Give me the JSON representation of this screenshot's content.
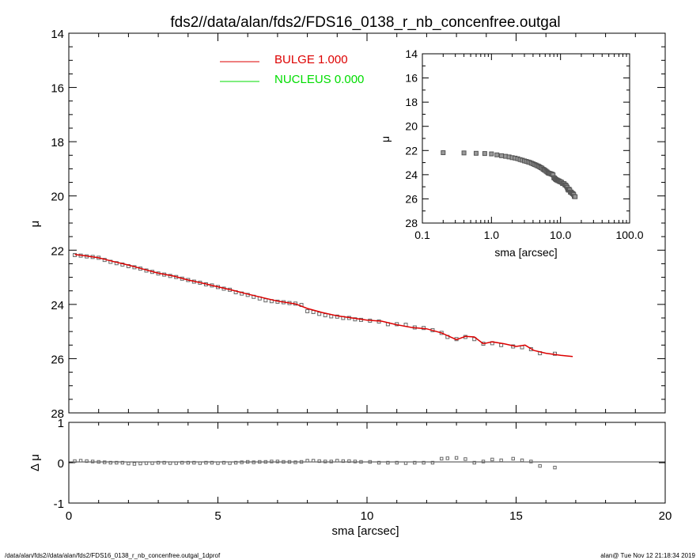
{
  "title": "fds2//data/alan/fds2/FDS16_0138_r_nb_concenfree.outgal",
  "footer_left": "/data/alan/fds2//data/alan/fds2/FDS16_0138_r_nb_concenfree.outgal_1dprof",
  "footer_right": "alan@  Tue Nov 12 21:18:34 2019",
  "colors": {
    "bulge": "#dd0000",
    "nucleus": "#00dd00",
    "data": "#666666"
  },
  "chart_data": [
    {
      "type": "line",
      "name": "main-profile",
      "xlabel": "sma [arcsec]",
      "ylabel": "μ",
      "xlim": [
        0,
        20
      ],
      "ylim": [
        28,
        14
      ],
      "xticks": [
        0,
        5,
        10,
        15,
        20
      ],
      "yticks": [
        14,
        16,
        18,
        20,
        22,
        24,
        26,
        28
      ],
      "legend": [
        {
          "label": "BULGE",
          "value": "1.000",
          "color": "#dd0000"
        },
        {
          "label": "NUCLEUS",
          "value": "0.000",
          "color": "#00dd00"
        }
      ],
      "data_points": [
        [
          0.2,
          22.18
        ],
        [
          0.4,
          22.2
        ],
        [
          0.6,
          22.23
        ],
        [
          0.8,
          22.25
        ],
        [
          1.0,
          22.28
        ],
        [
          1.2,
          22.36
        ],
        [
          1.4,
          22.43
        ],
        [
          1.6,
          22.48
        ],
        [
          1.8,
          22.53
        ],
        [
          2.0,
          22.59
        ],
        [
          2.2,
          22.63
        ],
        [
          2.4,
          22.68
        ],
        [
          2.6,
          22.75
        ],
        [
          2.8,
          22.8
        ],
        [
          3.0,
          22.86
        ],
        [
          3.2,
          22.9
        ],
        [
          3.4,
          22.95
        ],
        [
          3.6,
          22.99
        ],
        [
          3.8,
          23.05
        ],
        [
          4.0,
          23.1
        ],
        [
          4.2,
          23.16
        ],
        [
          4.4,
          23.2
        ],
        [
          4.6,
          23.26
        ],
        [
          4.8,
          23.3
        ],
        [
          5.0,
          23.36
        ],
        [
          5.2,
          23.42
        ],
        [
          5.4,
          23.46
        ],
        [
          5.6,
          23.55
        ],
        [
          5.8,
          23.6
        ],
        [
          6.0,
          23.65
        ],
        [
          6.2,
          23.72
        ],
        [
          6.4,
          23.78
        ],
        [
          6.6,
          23.85
        ],
        [
          6.8,
          23.88
        ],
        [
          7.0,
          23.9
        ],
        [
          7.2,
          23.92
        ],
        [
          7.4,
          23.95
        ],
        [
          7.6,
          23.97
        ],
        [
          7.8,
          24.02
        ],
        [
          8.0,
          24.25
        ],
        [
          8.2,
          24.28
        ],
        [
          8.4,
          24.35
        ],
        [
          8.6,
          24.4
        ],
        [
          8.8,
          24.44
        ],
        [
          9.0,
          24.45
        ],
        [
          9.2,
          24.5
        ],
        [
          9.4,
          24.5
        ],
        [
          9.6,
          24.55
        ],
        [
          9.8,
          24.57
        ],
        [
          10.1,
          24.6
        ],
        [
          10.4,
          24.63
        ],
        [
          10.7,
          24.73
        ],
        [
          11.0,
          24.73
        ],
        [
          11.3,
          24.75
        ],
        [
          11.6,
          24.85
        ],
        [
          11.9,
          24.87
        ],
        [
          12.2,
          24.95
        ],
        [
          12.5,
          25.05
        ],
        [
          12.7,
          25.2
        ],
        [
          13.0,
          25.28
        ],
        [
          13.3,
          25.2
        ],
        [
          13.6,
          25.28
        ],
        [
          13.9,
          25.45
        ],
        [
          14.2,
          25.43
        ],
        [
          14.5,
          25.5
        ],
        [
          14.9,
          25.55
        ],
        [
          15.2,
          25.58
        ],
        [
          15.5,
          25.65
        ],
        [
          15.8,
          25.8
        ],
        [
          16.3,
          25.82
        ]
      ],
      "bulge_model": [
        [
          0.2,
          22.16
        ],
        [
          0.5,
          22.2
        ],
        [
          1.0,
          22.28
        ],
        [
          1.5,
          22.42
        ],
        [
          2.0,
          22.55
        ],
        [
          2.5,
          22.7
        ],
        [
          3.0,
          22.85
        ],
        [
          3.5,
          22.95
        ],
        [
          4.0,
          23.1
        ],
        [
          4.5,
          23.22
        ],
        [
          5.0,
          23.35
        ],
        [
          5.5,
          23.48
        ],
        [
          6.0,
          23.62
        ],
        [
          6.5,
          23.75
        ],
        [
          7.0,
          23.88
        ],
        [
          7.6,
          23.98
        ],
        [
          8.0,
          24.15
        ],
        [
          8.5,
          24.3
        ],
        [
          9.0,
          24.42
        ],
        [
          9.5,
          24.5
        ],
        [
          10.0,
          24.58
        ],
        [
          10.5,
          24.62
        ],
        [
          11.0,
          24.75
        ],
        [
          11.5,
          24.85
        ],
        [
          12.0,
          24.9
        ],
        [
          12.5,
          25.05
        ],
        [
          13.0,
          25.3
        ],
        [
          13.3,
          25.18
        ],
        [
          13.6,
          25.2
        ],
        [
          13.9,
          25.45
        ],
        [
          14.2,
          25.38
        ],
        [
          14.6,
          25.45
        ],
        [
          15.0,
          25.55
        ],
        [
          15.3,
          25.5
        ],
        [
          15.6,
          25.7
        ],
        [
          16.0,
          25.8
        ],
        [
          16.5,
          25.88
        ],
        [
          16.9,
          25.92
        ]
      ]
    },
    {
      "type": "scatter",
      "name": "inset-log",
      "xlabel": "sma [arcsec]",
      "ylabel": "μ",
      "xscale": "log",
      "xlim": [
        0.1,
        100.0
      ],
      "ylim": [
        28,
        14
      ],
      "xtick_labels": [
        "0.1",
        "1.0",
        "10.0",
        "100.0"
      ],
      "yticks": [
        14,
        16,
        18,
        20,
        22,
        24,
        26,
        28
      ]
    },
    {
      "type": "scatter",
      "name": "residuals",
      "xlabel": "sma [arcsec]",
      "ylabel": "Δ μ",
      "xlim": [
        0,
        20
      ],
      "ylim": [
        -1,
        1
      ],
      "yticks": [
        1,
        0,
        -1
      ],
      "residuals": [
        [
          0.2,
          0.04
        ],
        [
          0.4,
          0.05
        ],
        [
          0.6,
          0.04
        ],
        [
          0.8,
          0.03
        ],
        [
          1.0,
          0.02
        ],
        [
          1.2,
          0.01
        ],
        [
          1.4,
          0.0
        ],
        [
          1.6,
          0.0
        ],
        [
          1.8,
          0.0
        ],
        [
          2.0,
          -0.02
        ],
        [
          2.2,
          -0.03
        ],
        [
          2.4,
          -0.02
        ],
        [
          2.6,
          -0.01
        ],
        [
          2.8,
          -0.01
        ],
        [
          3.0,
          0.0
        ],
        [
          3.2,
          0.0
        ],
        [
          3.4,
          -0.01
        ],
        [
          3.6,
          -0.01
        ],
        [
          3.8,
          0.0
        ],
        [
          4.0,
          0.0
        ],
        [
          4.2,
          0.0
        ],
        [
          4.4,
          -0.01
        ],
        [
          4.6,
          0.0
        ],
        [
          4.8,
          0.0
        ],
        [
          5.0,
          -0.01
        ],
        [
          5.2,
          0.0
        ],
        [
          5.4,
          -0.01
        ],
        [
          5.6,
          0.0
        ],
        [
          5.8,
          0.01
        ],
        [
          6.0,
          0.02
        ],
        [
          6.2,
          0.01
        ],
        [
          6.4,
          0.02
        ],
        [
          6.6,
          0.02
        ],
        [
          6.8,
          0.03
        ],
        [
          7.0,
          0.03
        ],
        [
          7.2,
          0.02
        ],
        [
          7.4,
          0.02
        ],
        [
          7.6,
          0.01
        ],
        [
          7.8,
          0.02
        ],
        [
          8.0,
          0.05
        ],
        [
          8.2,
          0.05
        ],
        [
          8.4,
          0.04
        ],
        [
          8.6,
          0.03
        ],
        [
          8.8,
          0.03
        ],
        [
          9.0,
          0.05
        ],
        [
          9.2,
          0.04
        ],
        [
          9.4,
          0.04
        ],
        [
          9.6,
          0.03
        ],
        [
          9.8,
          0.02
        ],
        [
          10.1,
          0.02
        ],
        [
          10.4,
          0.0
        ],
        [
          10.7,
          0.0
        ],
        [
          11.0,
          0.0
        ],
        [
          11.3,
          -0.01
        ],
        [
          11.6,
          0.0
        ],
        [
          11.9,
          0.0
        ],
        [
          12.2,
          0.0
        ],
        [
          12.5,
          0.1
        ],
        [
          12.7,
          0.11
        ],
        [
          13.0,
          0.12
        ],
        [
          13.3,
          0.09
        ],
        [
          13.6,
          0.0
        ],
        [
          13.9,
          0.03
        ],
        [
          14.2,
          0.08
        ],
        [
          14.5,
          0.06
        ],
        [
          14.9,
          0.1
        ],
        [
          15.2,
          0.06
        ],
        [
          15.5,
          0.03
        ],
        [
          15.8,
          -0.08
        ],
        [
          16.3,
          -0.12
        ]
      ]
    }
  ]
}
